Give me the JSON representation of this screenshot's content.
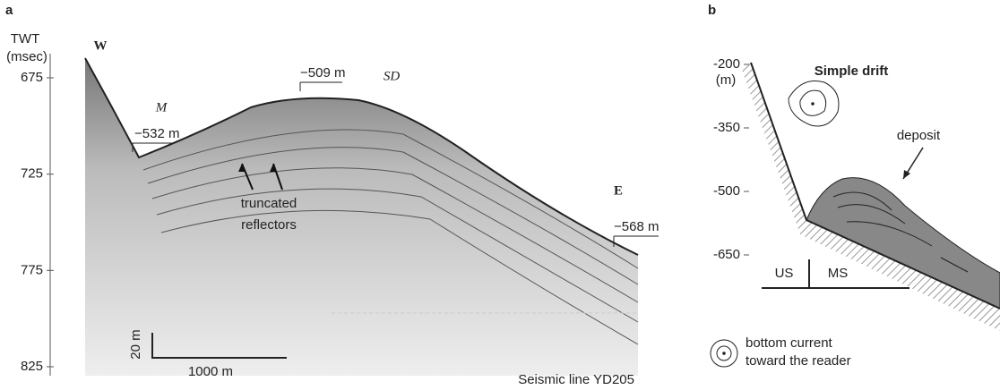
{
  "panel_a": {
    "label": "a",
    "axis_title": [
      "TWT",
      "(msec)"
    ],
    "yticks": [
      675,
      725,
      775,
      825
    ],
    "annotations": {
      "west": "W",
      "east": "E",
      "moat": "M",
      "drift": "SD",
      "depth_moat": "−532 m",
      "depth_crest": "−509 m",
      "depth_east": "−568 m",
      "reflectors": [
        "truncated",
        "reflectors"
      ]
    },
    "scale": {
      "vertical": "20 m",
      "horizontal": "1000 m"
    },
    "source": "Seismic line YD205"
  },
  "panel_b": {
    "label": "b",
    "title": "Simple drift",
    "yticks": [
      -200,
      -350,
      -500,
      -650
    ],
    "y_unit": "(m)",
    "annotations": {
      "deposit": "deposit",
      "upper_slope": "US",
      "middle_slope": "MS"
    },
    "legend": [
      "bottom current",
      "toward the reader"
    ]
  }
}
